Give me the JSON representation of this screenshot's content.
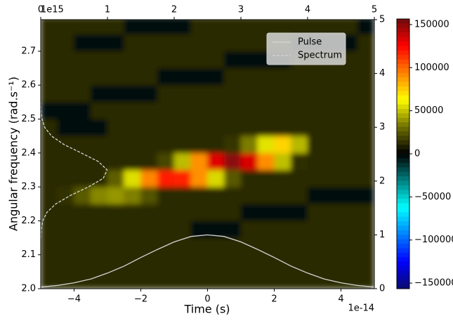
{
  "chart_data": {
    "type": "heatmap",
    "x_label": "Time (s)",
    "y_label": "Angular frequency (rad.s⁻¹)",
    "x_offset_label": "1e-14",
    "y_offset_label": "1e15",
    "xlim": [
      -5e-14,
      5e-14
    ],
    "xticks": [
      {
        "value": -4e-14,
        "label": "−4"
      },
      {
        "value": -2e-14,
        "label": "−2"
      },
      0,
      {
        "value": 2e-14,
        "label": "2"
      },
      {
        "value": 4e-14,
        "label": "4"
      }
    ],
    "ylim": [
      2000000000000000.0,
      2793000000000000.0
    ],
    "yticks": [
      {
        "value": 2000000000000000.0,
        "label": "2.0"
      },
      {
        "value": 2100000000000000.0,
        "label": "2.1"
      },
      {
        "value": 2200000000000000.0,
        "label": "2.2"
      },
      {
        "value": 2300000000000000.0,
        "label": "2.3"
      },
      {
        "value": 2400000000000000.0,
        "label": "2.4"
      },
      {
        "value": 2500000000000000.0,
        "label": "2.5"
      },
      {
        "value": 2600000000000000.0,
        "label": "2.6"
      },
      {
        "value": 2700000000000000.0,
        "label": "2.7"
      }
    ],
    "x2lim": [
      0,
      5
    ],
    "x2ticks": [
      0,
      1,
      2,
      3,
      4,
      5
    ],
    "y2lim": [
      0,
      5
    ],
    "y2ticks": [
      0,
      1,
      2,
      3,
      4,
      5
    ],
    "zlim": [
      -156500,
      156500
    ],
    "zticks": [
      {
        "value": -150000,
        "label": "−150000"
      },
      {
        "value": -100000,
        "label": "−100000"
      },
      {
        "value": -50000,
        "label": "−50000"
      },
      0,
      50000,
      100000,
      150000
    ],
    "colorscale": [
      "#0a0a6e",
      "#0000ff",
      "#0080ff",
      "#00ffff",
      "#008080",
      "#000000",
      "#707000",
      "#ffff00",
      "#ff8000",
      "#ff0000",
      "#6e0a0a"
    ],
    "x": [
      -4.75e-14,
      -4.25e-14,
      -3.75e-14,
      -3.25e-14,
      -2.75e-14,
      -2.25e-14,
      -1.75e-14,
      -1.25e-14,
      -7.5e-15,
      -2.5e-15,
      2.5e-15,
      7.5e-15,
      1.25e-14,
      1.75e-14,
      2.25e-14,
      2.75e-14,
      3.25e-14,
      3.75e-14,
      4.25e-14,
      4.75e-14
    ],
    "y": [
      2025000000000000.0,
      2075000000000000.0,
      2125000000000000.0,
      2175000000000000.0,
      2225000000000000.0,
      2275000000000000.0,
      2325000000000000.0,
      2375000000000000.0,
      2425000000000000.0,
      2475000000000000.0,
      2525000000000000.0,
      2575000000000000.0,
      2625000000000000.0,
      2675000000000000.0,
      2725000000000000.0,
      2775000000000000.0
    ],
    "z": [
      [
        12000,
        12000,
        12000,
        12000,
        12000,
        12000,
        12000,
        12000,
        12000,
        12000,
        12000,
        12000,
        12000,
        12000,
        12000,
        12000,
        12000,
        12000,
        12000,
        12000
      ],
      [
        12000,
        12000,
        12000,
        12000,
        12000,
        12000,
        12000,
        12000,
        12000,
        12000,
        12000,
        12000,
        12000,
        12000,
        12000,
        12000,
        12000,
        12000,
        12000,
        12000
      ],
      [
        12000,
        12000,
        12000,
        12000,
        12000,
        12000,
        12000,
        12000,
        12000,
        12000,
        12000,
        12000,
        12000,
        12000,
        12000,
        12000,
        12000,
        12000,
        12000,
        12000
      ],
      [
        12000,
        12000,
        12000,
        12000,
        12000,
        12000,
        12000,
        12000,
        12000,
        -3000,
        -3000,
        -3000,
        12000,
        12000,
        12000,
        12000,
        12000,
        12000,
        12000,
        12000
      ],
      [
        12000,
        12000,
        12000,
        12000,
        12000,
        12000,
        12000,
        12000,
        12000,
        12000,
        12000,
        12000,
        -3000,
        -3000,
        -3000,
        -3000,
        12000,
        12000,
        12000,
        12000
      ],
      [
        12000,
        13500,
        25100,
        36400,
        39700,
        34600,
        23300,
        12000,
        12000,
        12000,
        12000,
        12000,
        12000,
        12000,
        12000,
        12000,
        -3000,
        -3000,
        -3000,
        -3000
      ],
      [
        12000,
        12000,
        12000,
        12000,
        26500,
        55600,
        92300,
        117500,
        116600,
        89900,
        54300,
        25000,
        12000,
        12000,
        12000,
        12000,
        12000,
        12000,
        12000,
        12000
      ],
      [
        12000,
        12000,
        12000,
        12000,
        12000,
        12000,
        12000,
        19600,
        48000,
        89900,
        131800,
        150000,
        133300,
        90800,
        48900,
        12500,
        12000,
        12000,
        12000,
        12000
      ],
      [
        12000,
        12000,
        12000,
        12000,
        12000,
        12000,
        12000,
        12000,
        12000,
        12000,
        12000,
        15200,
        33700,
        56400,
        73300,
        47000,
        12000,
        12000,
        12000,
        12000
      ],
      [
        12000,
        -3000,
        -3000,
        -3000,
        12000,
        12000,
        12000,
        12000,
        12000,
        12000,
        12000,
        12000,
        12000,
        12000,
        12000,
        12000,
        12000,
        12000,
        12000,
        12000
      ],
      [
        -3000,
        -3000,
        -3000,
        12000,
        12000,
        12000,
        12000,
        12000,
        12000,
        12000,
        12000,
        12000,
        12000,
        12000,
        12000,
        12000,
        12000,
        12000,
        12000,
        12000
      ],
      [
        12000,
        12000,
        12000,
        -3000,
        -3000,
        -3000,
        -3000,
        12000,
        12000,
        12000,
        12000,
        12000,
        12000,
        12000,
        12000,
        12000,
        12000,
        12000,
        12000,
        12000
      ],
      [
        12000,
        12000,
        12000,
        12000,
        12000,
        12000,
        12000,
        -3000,
        -3000,
        -3000,
        -3000,
        12000,
        12000,
        12000,
        12000,
        12000,
        12000,
        12000,
        12000,
        12000
      ],
      [
        12000,
        12000,
        12000,
        12000,
        12000,
        12000,
        12000,
        12000,
        12000,
        12000,
        12000,
        -3000,
        -3000,
        -3000,
        -3000,
        12000,
        12000,
        12000,
        12000,
        12000
      ],
      [
        12000,
        12000,
        -3000,
        -3000,
        -3000,
        12000,
        12000,
        12000,
        12000,
        12000,
        12000,
        12000,
        12000,
        12000,
        12000,
        -3000,
        -3000,
        -3000,
        -3000,
        12000
      ],
      [
        12000,
        12000,
        12000,
        12000,
        12000,
        -3000,
        -3000,
        -3000,
        -3000,
        12000,
        12000,
        12000,
        12000,
        12000,
        12000,
        12000,
        12000,
        12000,
        12000,
        -3000
      ]
    ],
    "lines": [
      {
        "name": "Pulse",
        "color": "#d4d4d4",
        "axis": "y2",
        "x": [
          -5e-14,
          -4.5e-14,
          -4e-14,
          -3.5e-14,
          -3e-14,
          -2.5e-14,
          -2e-14,
          -1.5e-14,
          -1e-14,
          -5e-15,
          0,
          5e-15,
          1e-14,
          1.5e-14,
          2e-14,
          2.5e-14,
          3e-14,
          3.5e-14,
          4e-14,
          4.5e-14,
          5e-14
        ],
        "values": [
          0.03,
          0.06,
          0.11,
          0.18,
          0.29,
          0.42,
          0.58,
          0.73,
          0.87,
          0.97,
          1,
          0.97,
          0.87,
          0.73,
          0.58,
          0.42,
          0.29,
          0.18,
          0.11,
          0.06,
          0.03
        ]
      },
      {
        "name": "Spectrum",
        "color": "#d4d4d4",
        "dashed": true,
        "axis": "x2",
        "y": [
          2150000000000000.0,
          2175000000000000.0,
          2200000000000000.0,
          2225000000000000.0,
          2250000000000000.0,
          2275000000000000.0,
          2300000000000000.0,
          2325000000000000.0,
          2350000000000000.0,
          2375000000000000.0,
          2400000000000000.0,
          2425000000000000.0,
          2450000000000000.0,
          2475000000000000.0,
          2500000000000000.0,
          2525000000000000.0,
          2550000000000000.0
        ],
        "values": [
          0.002,
          0.008,
          0.031,
          0.093,
          0.225,
          0.445,
          0.715,
          0.936,
          0.996,
          0.862,
          0.607,
          0.347,
          0.162,
          0.061,
          0.019,
          0.005,
          0.001
        ]
      }
    ],
    "legend": "upper right"
  }
}
